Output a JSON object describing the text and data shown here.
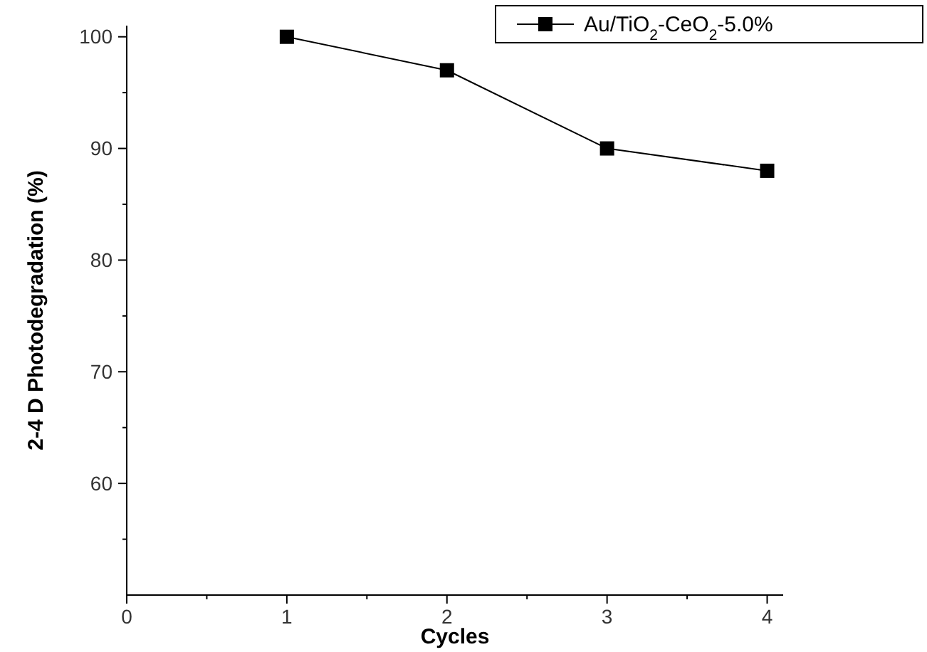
{
  "chart_data": {
    "type": "line",
    "xlabel": "Cycles",
    "ylabel": "2-4 D Photodegradation (%)",
    "x": [
      1,
      2,
      3,
      4
    ],
    "series": [
      {
        "name": "Au/TiO$_{2}$-CeO$_{2}$-5.0%",
        "color": "#000000",
        "values": [
          100,
          97,
          90,
          88
        ]
      }
    ],
    "xlim": [
      0,
      4.1
    ],
    "xticks": [
      0,
      {
        "value": 0.5,
        "label": null
      },
      1,
      {
        "value": 1.5,
        "label": null
      },
      2,
      {
        "value": 2.5,
        "label": null
      },
      3,
      {
        "value": 3.5,
        "label": null
      },
      4
    ],
    "ylim": [
      50,
      101
    ],
    "yticks": [
      {
        "value": 55,
        "label": null
      },
      60,
      {
        "value": 65,
        "label": null
      },
      70,
      {
        "value": 75,
        "label": null
      },
      80,
      {
        "value": 85,
        "label": null
      },
      90,
      {
        "value": 95,
        "label": null
      },
      100
    ],
    "legend": "top right",
    "marker": "square",
    "line_style": "solid",
    "grid": false
  }
}
